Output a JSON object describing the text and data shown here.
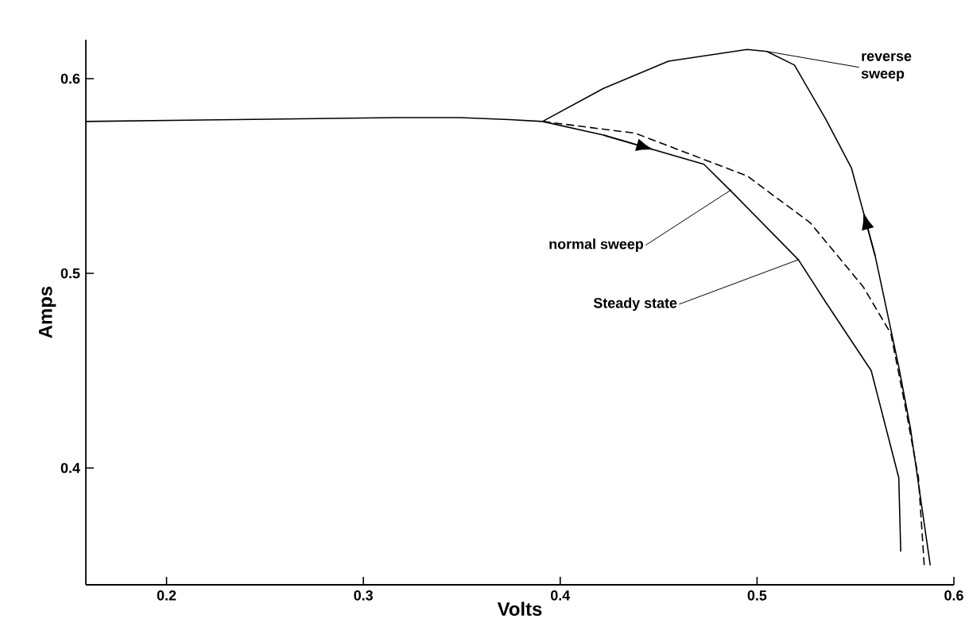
{
  "chart_data": {
    "type": "line",
    "xlabel": "Volts",
    "ylabel": "Amps",
    "xlim": [
      0.159,
      0.6
    ],
    "ylim": [
      0.34,
      0.62
    ],
    "xticks": [
      0.2,
      0.3,
      0.4,
      0.5,
      0.6
    ],
    "yticks": [
      0.4,
      0.5,
      0.6
    ],
    "grid": false,
    "marker": "none",
    "series": [
      {
        "color": "#000000",
        "line_style": "solid",
        "x": [
          0.159,
          0.236,
          0.317,
          0.349,
          0.374,
          0.391,
          0.422,
          0.473,
          0.487,
          0.521,
          0.535,
          0.558,
          0.572,
          0.573
        ],
        "values": [
          0.578,
          0.579,
          0.58,
          0.58,
          0.579,
          0.578,
          0.571,
          0.556,
          0.542,
          0.507,
          0.485,
          0.45,
          0.395,
          0.357
        ]
      },
      {
        "color": "#000000",
        "line_style": "dashed",
        "x": [
          0.391,
          0.438,
          0.495,
          0.527,
          0.554,
          0.568,
          0.576,
          0.582,
          0.585
        ],
        "values": [
          0.578,
          0.572,
          0.55,
          0.526,
          0.493,
          0.469,
          0.428,
          0.395,
          0.349
        ]
      },
      {
        "color": "#000000",
        "line_style": "solid",
        "x": [
          0.391,
          0.422,
          0.455,
          0.495,
          0.505,
          0.519,
          0.535,
          0.548,
          0.56,
          0.572,
          0.578,
          0.588
        ],
        "values": [
          0.578,
          0.595,
          0.609,
          0.615,
          0.614,
          0.607,
          0.579,
          0.554,
          0.509,
          0.452,
          0.42,
          0.35
        ]
      }
    ],
    "annotations": [
      {
        "text": "normal sweep",
        "x": 0.487,
        "y": 0.543
      },
      {
        "text": "Steady state",
        "x": 0.521,
        "y": 0.507
      },
      {
        "text": "reverse sweep",
        "x": 0.505,
        "y": 0.614
      }
    ]
  }
}
